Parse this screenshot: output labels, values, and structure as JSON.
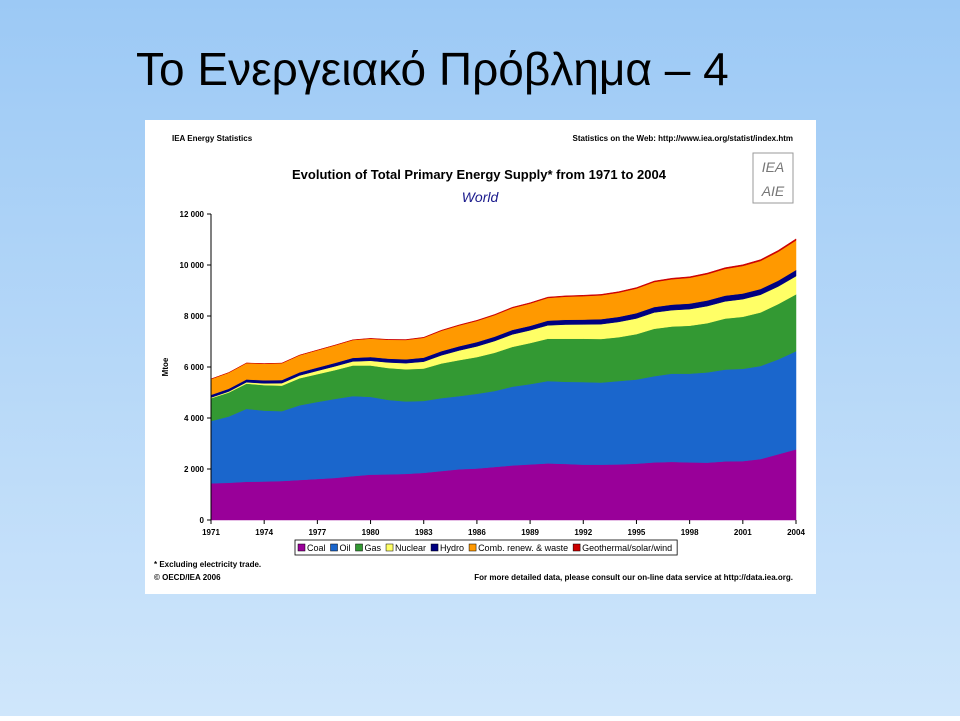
{
  "slide_title": "Το Ενεργειακό Πρόβλημα – 4",
  "chart_data": {
    "type": "stacked_area",
    "header_left": "IEA Energy Statistics",
    "header_right": "Statistics on the Web: http://www.iea.org/statist/index.htm",
    "logo": [
      "IEA",
      "AIE"
    ],
    "title": "Evolution of Total Primary Energy Supply* from 1971 to 2004",
    "subtitle": "World",
    "y_label": "Mtoe",
    "footnote": "* Excluding electricity trade.",
    "copyright": "© OECD/IEA 2006",
    "source_note": "For more detailed data, please consult our on-line data service at http://data.iea.org.",
    "x": [
      1971,
      1972,
      1973,
      1974,
      1975,
      1976,
      1977,
      1978,
      1979,
      1980,
      1981,
      1982,
      1983,
      1984,
      1985,
      1986,
      1987,
      1988,
      1989,
      1990,
      1991,
      1992,
      1993,
      1994,
      1995,
      1996,
      1997,
      1998,
      1999,
      2000,
      2001,
      2002,
      2003,
      2004
    ],
    "xlim": [
      1971,
      2004
    ],
    "xticks": [
      1971,
      1974,
      1977,
      1980,
      1983,
      1986,
      1989,
      1992,
      1995,
      1998,
      2001,
      2004
    ],
    "ylim": [
      0,
      12000
    ],
    "yticks": [
      0,
      {
        "value": 2000,
        "label": "2 000"
      },
      {
        "value": 4000,
        "label": "4 000"
      },
      {
        "value": 6000,
        "label": "6 000"
      },
      {
        "value": 8000,
        "label": "8 000"
      },
      {
        "value": 10000,
        "label": "10 000"
      },
      {
        "value": 12000,
        "label": "12 000"
      }
    ],
    "series": [
      {
        "name": "Coal",
        "color": "#990099",
        "values": [
          1440,
          1460,
          1500,
          1510,
          1530,
          1570,
          1610,
          1650,
          1720,
          1780,
          1790,
          1810,
          1850,
          1920,
          1990,
          2020,
          2080,
          2140,
          2180,
          2220,
          2200,
          2170,
          2170,
          2180,
          2210,
          2260,
          2280,
          2260,
          2250,
          2300,
          2310,
          2390,
          2580,
          2770
        ]
      },
      {
        "name": "Oil",
        "color": "#1a66cc",
        "values": [
          2440,
          2600,
          2860,
          2780,
          2740,
          2930,
          3020,
          3100,
          3140,
          3050,
          2920,
          2840,
          2820,
          2860,
          2870,
          2930,
          2980,
          3090,
          3150,
          3230,
          3220,
          3240,
          3220,
          3270,
          3300,
          3380,
          3460,
          3480,
          3540,
          3600,
          3620,
          3650,
          3720,
          3850
        ]
      },
      {
        "name": "Gas",
        "color": "#339933",
        "values": [
          895,
          940,
          990,
          1000,
          1000,
          1060,
          1090,
          1130,
          1200,
          1230,
          1250,
          1260,
          1270,
          1360,
          1410,
          1440,
          1500,
          1560,
          1610,
          1660,
          1690,
          1700,
          1710,
          1720,
          1780,
          1860,
          1850,
          1880,
          1930,
          2000,
          2040,
          2100,
          2170,
          2230
        ]
      },
      {
        "name": "Nuclear",
        "color": "#ffff66",
        "values": [
          29,
          40,
          53,
          70,
          98,
          110,
          132,
          150,
          160,
          186,
          220,
          240,
          270,
          320,
          380,
          420,
          460,
          490,
          500,
          525,
          555,
          560,
          580,
          600,
          615,
          640,
          640,
          650,
          670,
          675,
          690,
          695,
          690,
          714
        ]
      },
      {
        "name": "Hydro",
        "color": "#000080",
        "values": [
          104,
          108,
          110,
          120,
          121,
          122,
          126,
          132,
          138,
          147,
          149,
          152,
          158,
          163,
          165,
          168,
          170,
          175,
          175,
          184,
          188,
          190,
          198,
          198,
          208,
          213,
          217,
          219,
          221,
          225,
          224,
          226,
          230,
          242
        ]
      },
      {
        "name": "Comb. renew. & waste",
        "color": "#ff9900",
        "values": [
          620,
          630,
          640,
          650,
          660,
          670,
          680,
          690,
          700,
          720,
          740,
          760,
          780,
          800,
          815,
          830,
          845,
          860,
          875,
          890,
          905,
          920,
          935,
          950,
          965,
          980,
          995,
          1010,
          1030,
          1050,
          1080,
          1100,
          1130,
          1160
        ]
      },
      {
        "name": "Geothermal/solar/wind",
        "color": "#cc0000",
        "values": [
          4,
          4,
          5,
          5,
          6,
          7,
          8,
          9,
          10,
          12,
          14,
          16,
          18,
          20,
          22,
          24,
          26,
          28,
          30,
          32,
          33,
          34,
          35,
          36,
          37,
          38,
          40,
          41,
          43,
          45,
          47,
          50,
          54,
          58
        ]
      }
    ]
  }
}
